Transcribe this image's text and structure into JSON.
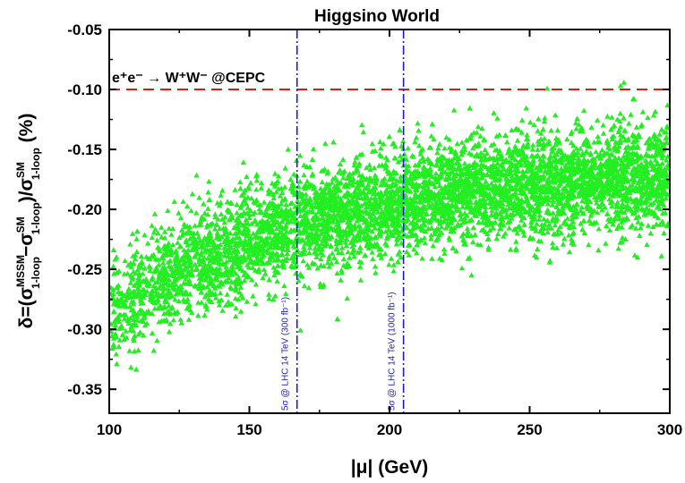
{
  "chart_data": {
    "type": "scatter",
    "title": "Higgsino World",
    "xlabel": "|μ|  (GeV)",
    "ylabel_parts": {
      "lhs": "δ=(σ",
      "sup1": "MSSM",
      "sub1": "1-loop",
      "minus": "−σ",
      "sup2": "SM",
      "sub2": "1-loop",
      "div": ")/σ",
      "sup3": "SM",
      "sub3": "1-loop",
      "unit": " (%)"
    },
    "xlim": [
      100,
      300
    ],
    "ylim": [
      -0.37,
      -0.05
    ],
    "xticks": [
      100,
      150,
      200,
      250,
      300
    ],
    "yticks": [
      -0.35,
      -0.3,
      -0.25,
      -0.2,
      -0.15,
      -0.1,
      -0.05
    ],
    "xtick_labels": [
      "100",
      "150",
      "200",
      "250",
      "300"
    ],
    "ytick_labels": [
      "-0.35",
      "-0.30",
      "-0.25",
      "-0.20",
      "-0.15",
      "-0.10",
      "-0.05"
    ],
    "grid": false,
    "series": [
      {
        "marker": "triangle",
        "color": "#22ee22",
        "trend_points": [
          {
            "x": 100,
            "y_center": -0.285,
            "spread": 0.04
          },
          {
            "x": 110,
            "y_center": -0.27,
            "spread": 0.045
          },
          {
            "x": 125,
            "y_center": -0.25,
            "spread": 0.045
          },
          {
            "x": 150,
            "y_center": -0.225,
            "spread": 0.045
          },
          {
            "x": 175,
            "y_center": -0.208,
            "spread": 0.045
          },
          {
            "x": 200,
            "y_center": -0.195,
            "spread": 0.045
          },
          {
            "x": 225,
            "y_center": -0.186,
            "spread": 0.045
          },
          {
            "x": 250,
            "y_center": -0.18,
            "spread": 0.045
          },
          {
            "x": 275,
            "y_center": -0.175,
            "spread": 0.045
          },
          {
            "x": 300,
            "y_center": -0.172,
            "spread": 0.045
          }
        ],
        "n_points": 5200
      }
    ],
    "hlines": [
      {
        "y": -0.1,
        "color": "#ee1111",
        "style": "dashed",
        "label": "e⁺e⁻ → W⁺W⁻ @CEPC"
      }
    ],
    "vlines": [
      {
        "x": 167,
        "color": "#1a1acc",
        "style": "dashdot",
        "label": "5σ @ LHC 14 TeV (300 fb⁻¹)"
      },
      {
        "x": 205,
        "color": "#1a1acc",
        "style": "dashdot",
        "label": "5σ @ LHC 14 TeV (1000 fb⁻¹)"
      }
    ]
  }
}
